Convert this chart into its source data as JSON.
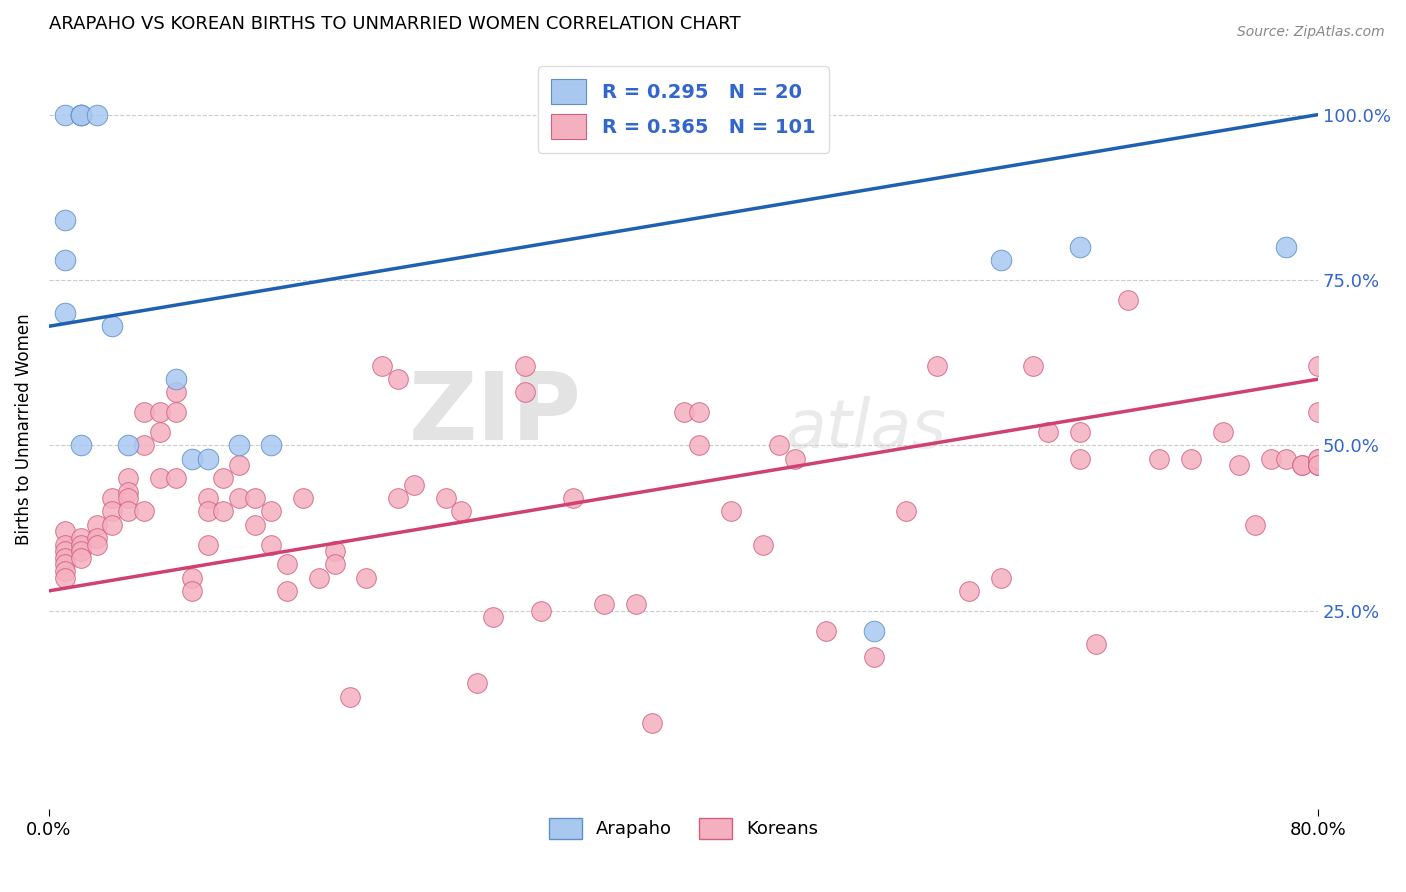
{
  "title": "ARAPAHO VS KOREAN BIRTHS TO UNMARRIED WOMEN CORRELATION CHART",
  "source": "Source: ZipAtlas.com",
  "ylabel": "Births to Unmarried Women",
  "ytick_labels": [
    "25.0%",
    "50.0%",
    "75.0%",
    "100.0%"
  ],
  "ytick_values": [
    0.25,
    0.5,
    0.75,
    1.0
  ],
  "xlim": [
    0.0,
    0.8
  ],
  "ylim": [
    -0.05,
    1.1
  ],
  "arapaho_R": 0.295,
  "arapaho_N": 20,
  "korean_R": 0.365,
  "korean_N": 101,
  "arapaho_color": "#A8C8F0",
  "korean_color": "#F5B0C0",
  "arapaho_edge_color": "#6090C8",
  "korean_edge_color": "#D06080",
  "arapaho_line_color": "#2060B0",
  "korean_line_color": "#D04070",
  "legend_text_color": "#3366CC",
  "watermark_zip": "ZIP",
  "watermark_atlas": "atlas",
  "arapaho_line_x": [
    0.0,
    0.8
  ],
  "arapaho_line_y": [
    0.68,
    1.0
  ],
  "korean_line_x": [
    0.0,
    0.8
  ],
  "korean_line_y": [
    0.28,
    0.6
  ],
  "arapaho_x": [
    0.01,
    0.02,
    0.02,
    0.02,
    0.03,
    0.01,
    0.01,
    0.01,
    0.04,
    0.08,
    0.09,
    0.1,
    0.12,
    0.14,
    0.02,
    0.05,
    0.6,
    0.65,
    0.78,
    0.52
  ],
  "arapaho_y": [
    1.0,
    1.0,
    1.0,
    1.0,
    1.0,
    0.84,
    0.78,
    0.7,
    0.68,
    0.6,
    0.48,
    0.48,
    0.5,
    0.5,
    0.5,
    0.5,
    0.78,
    0.8,
    0.8,
    0.22
  ],
  "korean_x": [
    0.01,
    0.01,
    0.01,
    0.01,
    0.01,
    0.01,
    0.01,
    0.02,
    0.02,
    0.02,
    0.02,
    0.03,
    0.03,
    0.03,
    0.04,
    0.04,
    0.04,
    0.05,
    0.05,
    0.05,
    0.05,
    0.06,
    0.06,
    0.06,
    0.07,
    0.07,
    0.07,
    0.08,
    0.08,
    0.08,
    0.09,
    0.09,
    0.1,
    0.1,
    0.1,
    0.11,
    0.11,
    0.12,
    0.12,
    0.13,
    0.13,
    0.14,
    0.14,
    0.15,
    0.15,
    0.16,
    0.17,
    0.18,
    0.18,
    0.19,
    0.2,
    0.21,
    0.22,
    0.22,
    0.23,
    0.25,
    0.26,
    0.27,
    0.28,
    0.3,
    0.3,
    0.31,
    0.33,
    0.35,
    0.37,
    0.38,
    0.4,
    0.41,
    0.41,
    0.43,
    0.45,
    0.46,
    0.47,
    0.49,
    0.52,
    0.54,
    0.56,
    0.58,
    0.6,
    0.62,
    0.63,
    0.65,
    0.65,
    0.66,
    0.68,
    0.7,
    0.72,
    0.74,
    0.75,
    0.76,
    0.77,
    0.78,
    0.79,
    0.79,
    0.8,
    0.8,
    0.8,
    0.8,
    0.8,
    0.8,
    0.8
  ],
  "korean_y": [
    0.37,
    0.35,
    0.34,
    0.33,
    0.32,
    0.31,
    0.3,
    0.36,
    0.35,
    0.34,
    0.33,
    0.38,
    0.36,
    0.35,
    0.42,
    0.4,
    0.38,
    0.45,
    0.43,
    0.42,
    0.4,
    0.55,
    0.5,
    0.4,
    0.55,
    0.52,
    0.45,
    0.58,
    0.55,
    0.45,
    0.3,
    0.28,
    0.42,
    0.4,
    0.35,
    0.45,
    0.4,
    0.47,
    0.42,
    0.42,
    0.38,
    0.4,
    0.35,
    0.32,
    0.28,
    0.42,
    0.3,
    0.34,
    0.32,
    0.12,
    0.3,
    0.62,
    0.6,
    0.42,
    0.44,
    0.42,
    0.4,
    0.14,
    0.24,
    0.62,
    0.58,
    0.25,
    0.42,
    0.26,
    0.26,
    0.08,
    0.55,
    0.55,
    0.5,
    0.4,
    0.35,
    0.5,
    0.48,
    0.22,
    0.18,
    0.4,
    0.62,
    0.28,
    0.3,
    0.62,
    0.52,
    0.52,
    0.48,
    0.2,
    0.72,
    0.48,
    0.48,
    0.52,
    0.47,
    0.38,
    0.48,
    0.48,
    0.47,
    0.47,
    0.47,
    0.47,
    0.55,
    0.62,
    0.48,
    0.48,
    0.47
  ]
}
